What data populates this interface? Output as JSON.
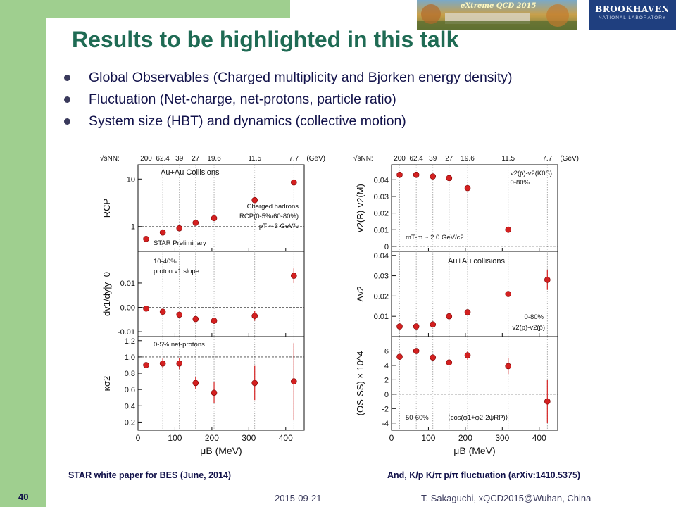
{
  "slide": {
    "title": "Results to be highlighted in this talk",
    "bullets": [
      "Global Observables (Charged multiplicity and Bjorken energy density)",
      "Fluctuation (Net-charge, net-protons, particle ratio)",
      "System size (HBT) and dynamics (collective motion)"
    ],
    "banner_text": "eXtreme QCD 2015",
    "logo_line1": "BROOKHAVEN",
    "logo_line2": "NATIONAL LABORATORY",
    "caption_left": "STAR white paper for BES (June, 2014)",
    "caption_right": "And, K/p K/π p/π fluctuation (arXiv:1410.5375)",
    "footer_page": "40",
    "footer_date": "2015-09-21",
    "footer_author": "T. Sakaguchi, xQCD2015@Wuhan, China",
    "colors": {
      "title": "#1f6b54",
      "sidebar": "#9fcf8f",
      "text": "#12124a",
      "marker": "#d42020"
    }
  },
  "chart_data": [
    {
      "type": "scatter",
      "xlabel": "μB (MeV)",
      "xlim": [
        0,
        450
      ],
      "x_ticks": [
        "0",
        "100",
        "200",
        "300",
        "400"
      ],
      "energy_axis_label": "√sNN:",
      "energy_labels": [
        {
          "mu": 22,
          "text": "200"
        },
        {
          "mu": 67,
          "text": "62.4"
        },
        {
          "mu": 112,
          "text": "39"
        },
        {
          "mu": 156,
          "text": "27"
        },
        {
          "mu": 206,
          "text": "19.6"
        },
        {
          "mu": 316,
          "text": "11.5"
        },
        {
          "mu": 422,
          "text": "7.7"
        }
      ],
      "energy_unit": "(GeV)",
      "panels": [
        {
          "ylabel": "RCP",
          "ylim": [
            0.3,
            20
          ],
          "log": true,
          "y_ticks": [
            {
              "v": 1,
              "t": "1"
            },
            {
              "v": 10,
              "t": "10"
            }
          ],
          "dashed": 1,
          "texts": [
            "Au+Au Collisions",
            "Charged hadrons",
            "RCP(0-5%/60-80%)",
            "pT ~ 3 GeV/c",
            "STAR Preliminary"
          ],
          "points": [
            {
              "x": 22,
              "y": 0.55
            },
            {
              "x": 67,
              "y": 0.75
            },
            {
              "x": 112,
              "y": 0.92
            },
            {
              "x": 156,
              "y": 1.2
            },
            {
              "x": 206,
              "y": 1.5
            },
            {
              "x": 316,
              "y": 3.6
            },
            {
              "x": 422,
              "y": 8.5
            }
          ]
        },
        {
          "ylabel": "dv1/dy|y=0",
          "ylim": [
            -0.012,
            0.023
          ],
          "log": false,
          "y_ticks": [
            {
              "v": -0.01,
              "t": "-0.01"
            },
            {
              "v": 0,
              "t": "0.00"
            },
            {
              "v": 0.01,
              "t": "0.01"
            }
          ],
          "dashed": 0,
          "texts": [
            "10-40%",
            "proton v1 slope"
          ],
          "points": [
            {
              "x": 22,
              "y": -0.0005,
              "err": 0.0005
            },
            {
              "x": 67,
              "y": -0.0018,
              "err": 0.001
            },
            {
              "x": 112,
              "y": -0.003,
              "err": 0.001
            },
            {
              "x": 156,
              "y": -0.0048,
              "err": 0.0008
            },
            {
              "x": 206,
              "y": -0.0055,
              "err": 0.0012
            },
            {
              "x": 316,
              "y": -0.0035,
              "err": 0.002
            },
            {
              "x": 422,
              "y": 0.013,
              "err": 0.003
            }
          ]
        },
        {
          "ylabel": "κσ2",
          "ylim": [
            0.1,
            1.25
          ],
          "log": false,
          "y_ticks": [
            {
              "v": 0.2,
              "t": "0.2"
            },
            {
              "v": 0.4,
              "t": "0.4"
            },
            {
              "v": 0.6,
              "t": "0.6"
            },
            {
              "v": 0.8,
              "t": "0.8"
            },
            {
              "v": 1.0,
              "t": "1.0"
            },
            {
              "v": 1.2,
              "t": "1.2"
            }
          ],
          "dashed": 1.0,
          "texts": [
            "0-5% net-protons"
          ],
          "points": [
            {
              "x": 22,
              "y": 0.9,
              "err": 0.02
            },
            {
              "x": 67,
              "y": 0.92,
              "err": 0.06
            },
            {
              "x": 112,
              "y": 0.92,
              "err": 0.07
            },
            {
              "x": 156,
              "y": 0.68,
              "err": 0.07
            },
            {
              "x": 206,
              "y": 0.56,
              "err": 0.13
            },
            {
              "x": 316,
              "y": 0.68,
              "err": 0.21
            },
            {
              "x": 422,
              "y": 0.7,
              "err": 0.47
            }
          ]
        }
      ]
    },
    {
      "type": "scatter",
      "xlabel": "μB (MeV)",
      "xlim": [
        0,
        450
      ],
      "x_ticks": [
        "0",
        "100",
        "200",
        "300",
        "400"
      ],
      "energy_axis_label": "√sNN:",
      "energy_labels": [
        {
          "mu": 22,
          "text": "200"
        },
        {
          "mu": 67,
          "text": "62.4"
        },
        {
          "mu": 112,
          "text": "39"
        },
        {
          "mu": 156,
          "text": "27"
        },
        {
          "mu": 206,
          "text": "19.6"
        },
        {
          "mu": 316,
          "text": "11.5"
        },
        {
          "mu": 422,
          "text": "7.7"
        }
      ],
      "energy_unit": "(GeV)",
      "panels": [
        {
          "ylabel": "v2(B)-v2(M)",
          "ylim": [
            -0.003,
            0.049
          ],
          "log": false,
          "y_ticks": [
            {
              "v": 0,
              "t": "0"
            },
            {
              "v": 0.01,
              "t": "0.01"
            },
            {
              "v": 0.02,
              "t": "0.02"
            },
            {
              "v": 0.03,
              "t": "0.03"
            },
            {
              "v": 0.04,
              "t": "0.04"
            }
          ],
          "dashed": 0,
          "texts": [
            "v2(p̄)-v2(K0S)",
            "0-80%",
            "mT-m ~ 2.0 GeV/c2"
          ],
          "points": [
            {
              "x": 22,
              "y": 0.043
            },
            {
              "x": 67,
              "y": 0.043
            },
            {
              "x": 112,
              "y": 0.042
            },
            {
              "x": 156,
              "y": 0.041
            },
            {
              "x": 206,
              "y": 0.035
            },
            {
              "x": 316,
              "y": 0.01,
              "err": 0.002
            }
          ]
        },
        {
          "ylabel": "Δv2",
          "ylim": [
            0,
            0.042
          ],
          "log": false,
          "y_ticks": [
            {
              "v": 0.01,
              "t": "0.01"
            },
            {
              "v": 0.02,
              "t": "0.02"
            },
            {
              "v": 0.03,
              "t": "0.03"
            },
            {
              "v": 0.04,
              "t": "0.04"
            }
          ],
          "dashed": null,
          "texts": [
            "Au+Au collisions",
            "0-80%",
            "v2(p)-v2(p̄)"
          ],
          "points": [
            {
              "x": 22,
              "y": 0.005
            },
            {
              "x": 67,
              "y": 0.005
            },
            {
              "x": 112,
              "y": 0.006
            },
            {
              "x": 156,
              "y": 0.01
            },
            {
              "x": 206,
              "y": 0.012
            },
            {
              "x": 316,
              "y": 0.021,
              "err": 0.0015
            },
            {
              "x": 422,
              "y": 0.028,
              "err": 0.005
            }
          ]
        },
        {
          "ylabel": "(OS-SS) × 10^4",
          "ylim": [
            -5,
            8
          ],
          "log": false,
          "y_ticks": [
            {
              "v": -4,
              "t": "-4"
            },
            {
              "v": -2,
              "t": "-2"
            },
            {
              "v": 0,
              "t": "0"
            },
            {
              "v": 2,
              "t": "2"
            },
            {
              "v": 4,
              "t": "4"
            },
            {
              "v": 6,
              "t": "6"
            }
          ],
          "dashed": 0,
          "texts": [
            "50-60%",
            "⟨cos(φ1+φ2-2ψRP)⟩"
          ],
          "points": [
            {
              "x": 22,
              "y": 5.2,
              "err": 0.3
            },
            {
              "x": 67,
              "y": 6.0,
              "err": 0.3
            },
            {
              "x": 112,
              "y": 5.1,
              "err": 0.3
            },
            {
              "x": 156,
              "y": 4.4,
              "err": 0.3
            },
            {
              "x": 206,
              "y": 5.4,
              "err": 0.6
            },
            {
              "x": 316,
              "y": 3.9,
              "err": 1.1
            },
            {
              "x": 422,
              "y": -1.0,
              "err": 3.0
            }
          ]
        }
      ]
    }
  ]
}
